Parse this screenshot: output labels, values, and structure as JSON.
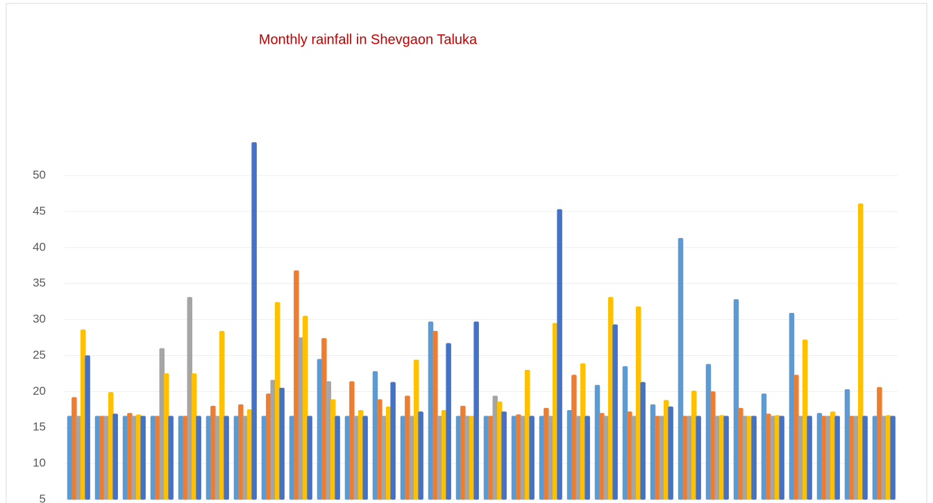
{
  "chart_data": {
    "type": "bar",
    "title": "Monthly  rainfall  in  Shevgaon  Taluka",
    "categories": [
      null,
      null,
      null,
      null,
      null,
      null,
      null,
      null,
      null,
      null,
      null,
      null,
      null,
      null,
      null,
      null,
      null,
      null,
      null,
      null,
      null,
      null,
      null,
      null,
      null,
      null,
      null,
      null,
      null,
      null
    ],
    "series": [
      {
        "color": "#5b9bd5",
        "values": [
          16.6,
          16.6,
          16.6,
          16.6,
          16.6,
          16.6,
          16.6,
          16.6,
          16.6,
          24.5,
          16.6,
          22.8,
          16.6,
          29.7,
          16.6,
          16.6,
          16.6,
          16.6,
          17.4,
          20.9,
          23.5,
          18.2,
          41.3,
          23.8,
          32.8,
          19.7,
          30.9,
          17.0,
          20.3,
          16.6
        ]
      },
      {
        "color": "#ed7d31",
        "values": [
          19.2,
          16.6,
          17.0,
          16.6,
          16.6,
          18.0,
          18.2,
          19.7,
          36.8,
          27.4,
          21.4,
          18.9,
          19.4,
          28.4,
          18.0,
          16.6,
          16.8,
          17.7,
          22.3,
          17.0,
          17.2,
          16.6,
          16.6,
          20.0,
          17.7,
          16.9,
          22.3,
          16.6,
          16.6,
          20.6
        ]
      },
      {
        "color": "#a5a5a5",
        "values": [
          16.6,
          16.6,
          16.6,
          26.0,
          33.1,
          16.6,
          16.6,
          21.6,
          27.5,
          21.4,
          16.6,
          16.6,
          16.6,
          16.6,
          16.6,
          19.4,
          16.6,
          16.6,
          16.6,
          16.6,
          16.6,
          16.6,
          16.6,
          16.6,
          16.6,
          16.6,
          16.6,
          16.6,
          16.6,
          16.6
        ]
      },
      {
        "color": "#ffc000",
        "values": [
          28.6,
          19.9,
          16.8,
          22.5,
          22.5,
          28.4,
          17.5,
          32.4,
          30.5,
          18.9,
          17.4,
          17.9,
          24.4,
          17.4,
          16.6,
          18.6,
          23.0,
          29.5,
          23.9,
          33.1,
          31.8,
          18.8,
          20.1,
          16.7,
          16.6,
          16.7,
          27.2,
          17.2,
          46.1,
          16.7
        ]
      },
      {
        "color": "#4472c4",
        "values": [
          25.0,
          16.9,
          16.6,
          16.6,
          16.6,
          16.6,
          54.6,
          20.5,
          16.6,
          16.6,
          16.6,
          21.3,
          17.2,
          26.7,
          29.7,
          17.2,
          16.6,
          45.3,
          16.6,
          29.3,
          21.3,
          17.9,
          16.6,
          16.6,
          16.6,
          16.6,
          16.6,
          16.6,
          16.6,
          16.6
        ]
      }
    ],
    "ylim": [
      5,
      58
    ],
    "yticks": [
      5,
      10,
      15,
      20,
      25,
      30,
      35,
      40,
      45,
      50
    ],
    "grid": true
  }
}
